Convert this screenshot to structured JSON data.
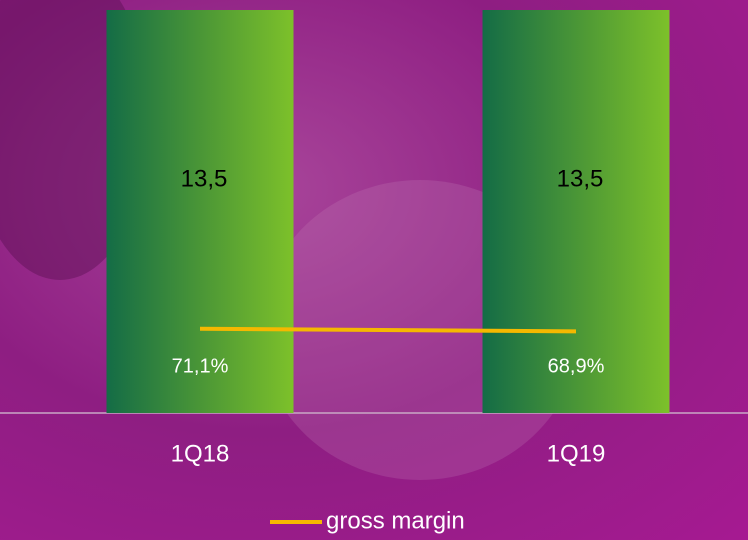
{
  "chart_data": {
    "type": "bar",
    "categories": [
      "1Q18",
      "1Q19"
    ],
    "series": [
      {
        "type": "bar",
        "values": [
          13.5,
          13.5
        ],
        "value_labels": [
          "13,5",
          "13,5"
        ],
        "color": "#7dc12a"
      },
      {
        "type": "line",
        "name": "gross margin",
        "axis": "y2",
        "values": [
          71.1,
          68.9
        ],
        "value_labels": [
          "71,1%",
          "68,9%"
        ],
        "color": "#f5b800"
      }
    ],
    "ylim": [
      0,
      13.5
    ],
    "y2lim": [
      0,
      340
    ]
  }
}
